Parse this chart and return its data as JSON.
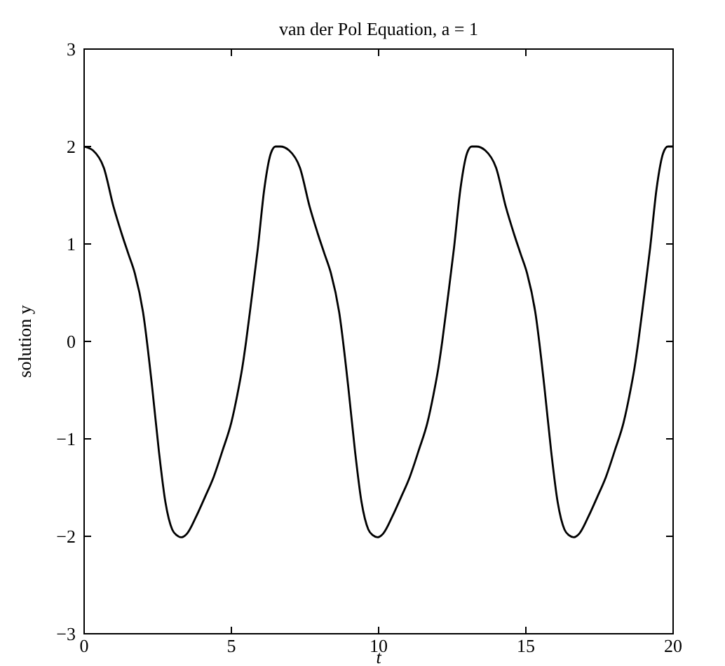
{
  "chart_data": {
    "type": "line",
    "title": "van der Pol Equation, a = 1",
    "xlabel": "t",
    "ylabel": "solution y",
    "xlim": [
      0,
      20
    ],
    "ylim": [
      -3,
      3
    ],
    "xticks": [
      0,
      5,
      10,
      15,
      20
    ],
    "yticks": [
      {
        "value": -3,
        "label": "−3"
      },
      {
        "value": -2,
        "label": "−2"
      },
      {
        "value": -1,
        "label": "−1"
      },
      0,
      1,
      2,
      3
    ],
    "grid": false,
    "marker": "none",
    "line_style": "solid",
    "series": [
      {
        "color": "#000000",
        "x": [
          0,
          0.3,
          0.67,
          1.0,
          1.27,
          1.5,
          1.72,
          2.0,
          2.31,
          2.54,
          2.76,
          2.99,
          3.15,
          3.31,
          3.5,
          3.8,
          4.1,
          4.4,
          4.7,
          5.0,
          5.2,
          5.37,
          5.5,
          5.67,
          5.9,
          6.12,
          6.34,
          6.5,
          6.66,
          6.96,
          7.33,
          7.66,
          7.93,
          8.16,
          8.38,
          8.66,
          8.97,
          9.2,
          9.42,
          9.65,
          9.81,
          9.97,
          10.16,
          10.46,
          10.76,
          11.06,
          11.36,
          11.66,
          11.86,
          12.03,
          12.16,
          12.33,
          12.56,
          12.78,
          13.0,
          13.16,
          13.32,
          13.62,
          13.99,
          14.32,
          14.59,
          14.82,
          15.04,
          15.32,
          15.63,
          15.86,
          16.08,
          16.31,
          16.47,
          16.63,
          16.82,
          17.12,
          17.42,
          17.72,
          18.02,
          18.32,
          18.52,
          18.69,
          18.82,
          18.99,
          19.22,
          19.44,
          19.66,
          19.82,
          20
        ],
        "values": [
          2.0,
          1.96,
          1.78,
          1.38,
          1.11,
          0.9,
          0.7,
          0.3,
          -0.47,
          -1.13,
          -1.65,
          -1.93,
          -1.99,
          -2.01,
          -1.97,
          -1.8,
          -1.6,
          -1.39,
          -1.12,
          -0.83,
          -0.55,
          -0.27,
          0.0,
          0.4,
          0.96,
          1.57,
          1.93,
          2.0,
          2.0,
          1.96,
          1.78,
          1.38,
          1.11,
          0.9,
          0.7,
          0.3,
          -0.47,
          -1.13,
          -1.65,
          -1.93,
          -1.99,
          -2.01,
          -1.97,
          -1.8,
          -1.6,
          -1.39,
          -1.12,
          -0.83,
          -0.55,
          -0.27,
          0.0,
          0.4,
          0.96,
          1.57,
          1.93,
          2.0,
          2.0,
          1.96,
          1.78,
          1.38,
          1.11,
          0.9,
          0.7,
          0.3,
          -0.47,
          -1.13,
          -1.65,
          -1.93,
          -1.99,
          -2.01,
          -1.97,
          -1.8,
          -1.6,
          -1.39,
          -1.12,
          -0.83,
          -0.55,
          -0.27,
          0.0,
          0.4,
          0.96,
          1.57,
          1.93,
          2.0,
          2.0
        ]
      }
    ]
  }
}
